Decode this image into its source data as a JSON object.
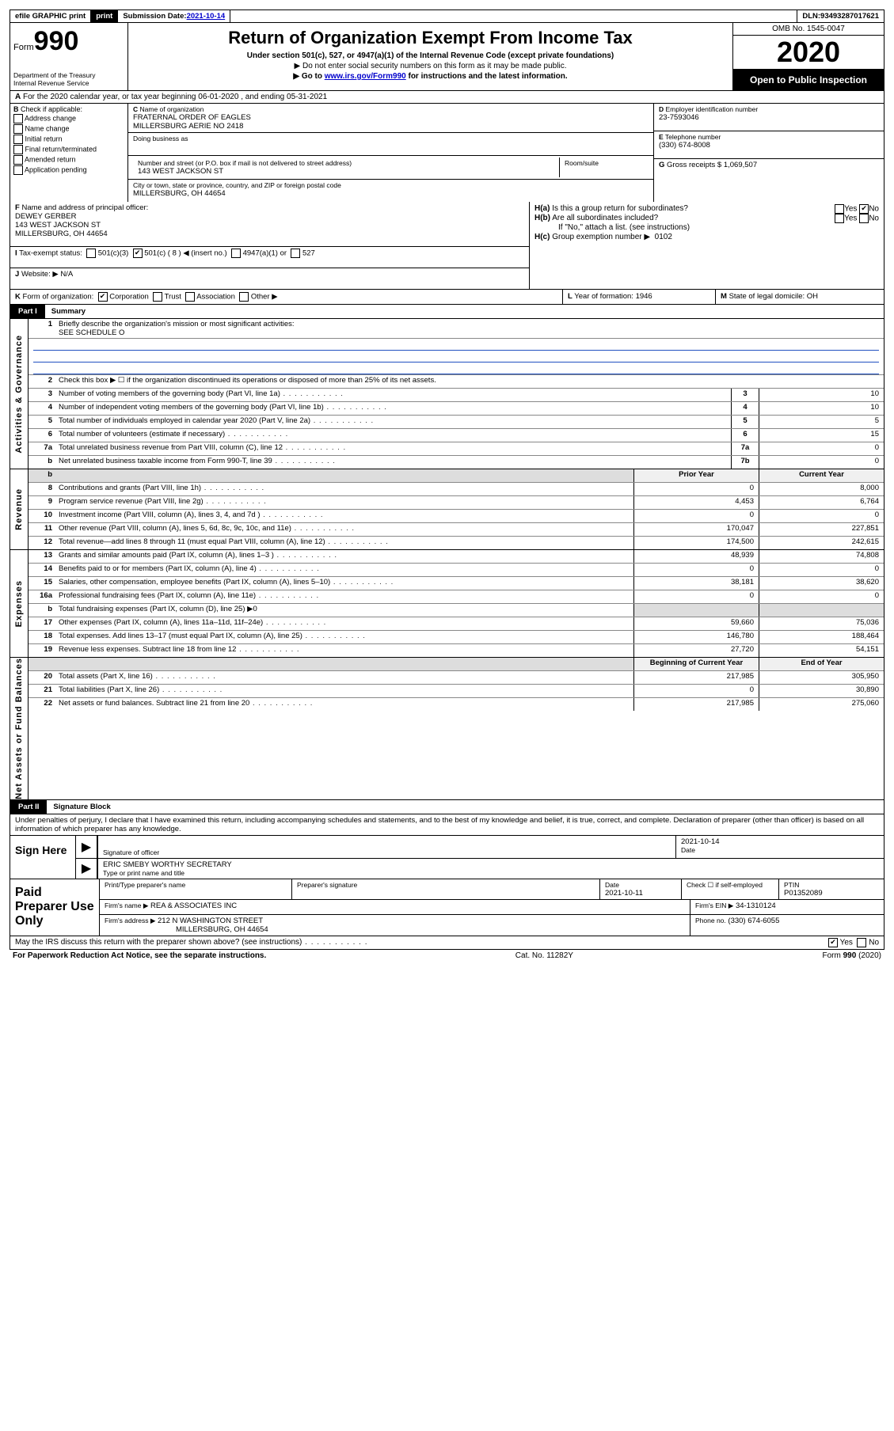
{
  "top": {
    "efile": "efile GRAPHIC print",
    "subdate_lbl": "Submission Date: ",
    "subdate": "2021-10-14",
    "dln_lbl": "DLN: ",
    "dln": "93493287017621"
  },
  "hdr": {
    "form": "Form",
    "num": "990",
    "dept1": "Department of the Treasury",
    "dept2": "Internal Revenue Service",
    "title": "Return of Organization Exempt From Income Tax",
    "sub1": "Under section 501(c), 527, or 4947(a)(1) of the Internal Revenue Code (except private foundations)",
    "sub2": "Do not enter social security numbers on this form as it may be made public.",
    "sub3a": "Go to ",
    "sub3b": "www.irs.gov/Form990",
    "sub3c": " for instructions and the latest information.",
    "omb": "OMB No. 1545-0047",
    "year": "2020",
    "open": "Open to Public Inspection"
  },
  "A": {
    "txt": "For the 2020 calendar year, or tax year beginning 06-01-2020   , and ending 05-31-2021"
  },
  "B": {
    "hdr": "Check if applicable:",
    "items": [
      "Address change",
      "Name change",
      "Initial return",
      "Final return/terminated",
      "Amended return",
      "Application pending"
    ]
  },
  "C": {
    "name_lbl": "Name of organization",
    "name1": "FRATERNAL ORDER OF EAGLES",
    "name2": "MILLERSBURG AERIE NO 2418",
    "dba_lbl": "Doing business as",
    "street_lbl": "Number and street (or P.O. box if mail is not delivered to street address)",
    "room_lbl": "Room/suite",
    "street": "143 WEST JACKSON ST",
    "city_lbl": "City or town, state or province, country, and ZIP or foreign postal code",
    "city": "MILLERSBURG, OH  44654"
  },
  "D": {
    "lbl": "Employer identification number",
    "val": "23-7593046"
  },
  "E": {
    "lbl": "Telephone number",
    "val": "(330) 674-8008"
  },
  "G": {
    "lbl": "Gross receipts $",
    "val": "1,069,507"
  },
  "F": {
    "lbl": "Name and address of principal officer:",
    "name": "DEWEY GERBER",
    "addr1": "143 WEST JACKSON ST",
    "addr2": "MILLERSBURG, OH  44654"
  },
  "H": {
    "a": "Is this a group return for subordinates?",
    "b": "Are all subordinates included?",
    "bnote": "If \"No,\" attach a list. (see instructions)",
    "c_lbl": "Group exemption number ▶",
    "c_val": "0102"
  },
  "I": {
    "lbl": "Tax-exempt status:",
    "opts": {
      "a": "501(c)(3)",
      "b": "501(c) ( 8 ) ◀ (insert no.)",
      "c": "4947(a)(1) or",
      "d": "527"
    }
  },
  "J": {
    "lbl": "Website: ▶",
    "val": "N/A"
  },
  "K": {
    "lbl": "Form of organization:",
    "opts": [
      "Corporation",
      "Trust",
      "Association",
      "Other ▶"
    ]
  },
  "L": {
    "lbl": "Year of formation:",
    "val": "1946"
  },
  "M": {
    "lbl": "State of legal domicile:",
    "val": "OH"
  },
  "part1": {
    "hdr": "Part I",
    "title": "Summary",
    "l1": "Briefly describe the organization's mission or most significant activities:",
    "l1val": "SEE SCHEDULE O",
    "l2": "Check this box ▶ ☐  if the organization discontinued its operations or disposed of more than 25% of its net assets.",
    "rows_gov": [
      {
        "n": "3",
        "d": "Number of voting members of the governing body (Part VI, line 1a)",
        "box": "3",
        "v": "10"
      },
      {
        "n": "4",
        "d": "Number of independent voting members of the governing body (Part VI, line 1b)",
        "box": "4",
        "v": "10"
      },
      {
        "n": "5",
        "d": "Total number of individuals employed in calendar year 2020 (Part V, line 2a)",
        "box": "5",
        "v": "5"
      },
      {
        "n": "6",
        "d": "Total number of volunteers (estimate if necessary)",
        "box": "6",
        "v": "15"
      },
      {
        "n": "7a",
        "d": "Total unrelated business revenue from Part VIII, column (C), line 12",
        "box": "7a",
        "v": "0"
      },
      {
        "n": "b",
        "d": "Net unrelated business taxable income from Form 990-T, line 39",
        "box": "7b",
        "v": "0"
      }
    ],
    "hdr_prior": "Prior Year",
    "hdr_curr": "Current Year",
    "rows_rev": [
      {
        "n": "8",
        "d": "Contributions and grants (Part VIII, line 1h)",
        "p": "0",
        "c": "8,000"
      },
      {
        "n": "9",
        "d": "Program service revenue (Part VIII, line 2g)",
        "p": "4,453",
        "c": "6,764"
      },
      {
        "n": "10",
        "d": "Investment income (Part VIII, column (A), lines 3, 4, and 7d )",
        "p": "0",
        "c": "0"
      },
      {
        "n": "11",
        "d": "Other revenue (Part VIII, column (A), lines 5, 6d, 8c, 9c, 10c, and 11e)",
        "p": "170,047",
        "c": "227,851"
      },
      {
        "n": "12",
        "d": "Total revenue—add lines 8 through 11 (must equal Part VIII, column (A), line 12)",
        "p": "174,500",
        "c": "242,615"
      }
    ],
    "rows_exp": [
      {
        "n": "13",
        "d": "Grants and similar amounts paid (Part IX, column (A), lines 1–3 )",
        "p": "48,939",
        "c": "74,808"
      },
      {
        "n": "14",
        "d": "Benefits paid to or for members (Part IX, column (A), line 4)",
        "p": "0",
        "c": "0"
      },
      {
        "n": "15",
        "d": "Salaries, other compensation, employee benefits (Part IX, column (A), lines 5–10)",
        "p": "38,181",
        "c": "38,620"
      },
      {
        "n": "16a",
        "d": "Professional fundraising fees (Part IX, column (A), line 11e)",
        "p": "0",
        "c": "0"
      },
      {
        "n": "b",
        "d": "Total fundraising expenses (Part IX, column (D), line 25) ▶0",
        "p": "",
        "c": "",
        "grey": true
      },
      {
        "n": "17",
        "d": "Other expenses (Part IX, column (A), lines 11a–11d, 11f–24e)",
        "p": "59,660",
        "c": "75,036"
      },
      {
        "n": "18",
        "d": "Total expenses. Add lines 13–17 (must equal Part IX, column (A), line 25)",
        "p": "146,780",
        "c": "188,464"
      },
      {
        "n": "19",
        "d": "Revenue less expenses. Subtract line 18 from line 12",
        "p": "27,720",
        "c": "54,151"
      }
    ],
    "hdr_begin": "Beginning of Current Year",
    "hdr_end": "End of Year",
    "rows_net": [
      {
        "n": "20",
        "d": "Total assets (Part X, line 16)",
        "p": "217,985",
        "c": "305,950"
      },
      {
        "n": "21",
        "d": "Total liabilities (Part X, line 26)",
        "p": "0",
        "c": "30,890"
      },
      {
        "n": "22",
        "d": "Net assets or fund balances. Subtract line 21 from line 20",
        "p": "217,985",
        "c": "275,060"
      }
    ],
    "side_gov": "Activities & Governance",
    "side_rev": "Revenue",
    "side_exp": "Expenses",
    "side_net": "Net Assets or Fund Balances"
  },
  "part2": {
    "hdr": "Part II",
    "title": "Signature Block",
    "decl": "Under penalties of perjury, I declare that I have examined this return, including accompanying schedules and statements, and to the best of my knowledge and belief, it is true, correct, and complete. Declaration of preparer (other than officer) is based on all information of which preparer has any knowledge.",
    "sign_here": "Sign Here",
    "sig_lbl": "Signature of officer",
    "date_lbl": "Date",
    "sig_date": "2021-10-14",
    "printed": "ERIC SMEBY  WORTHY SECRETARY",
    "printed_lbl": "Type or print name and title"
  },
  "prep": {
    "title": "Paid Preparer Use Only",
    "h1": "Print/Type preparer's name",
    "h2": "Preparer's signature",
    "h3": "Date",
    "h3v": "2021-10-11",
    "h4": "Check ☐ if self-employed",
    "h5": "PTIN",
    "h5v": "P01352089",
    "firm_lbl": "Firm's name    ▶",
    "firm": "REA & ASSOCIATES INC",
    "ein_lbl": "Firm's EIN ▶",
    "ein": "34-1310124",
    "addr_lbl": "Firm's address ▶",
    "addr1": "212 N WASHINGTON STREET",
    "addr2": "MILLERSBURG, OH  44654",
    "phone_lbl": "Phone no.",
    "phone": "(330) 674-6055",
    "discuss": "May the IRS discuss this return with the preparer shown above? (see instructions)"
  },
  "footer": {
    "left": "For Paperwork Reduction Act Notice, see the separate instructions.",
    "mid": "Cat. No. 11282Y",
    "right": "Form 990 (2020)"
  }
}
